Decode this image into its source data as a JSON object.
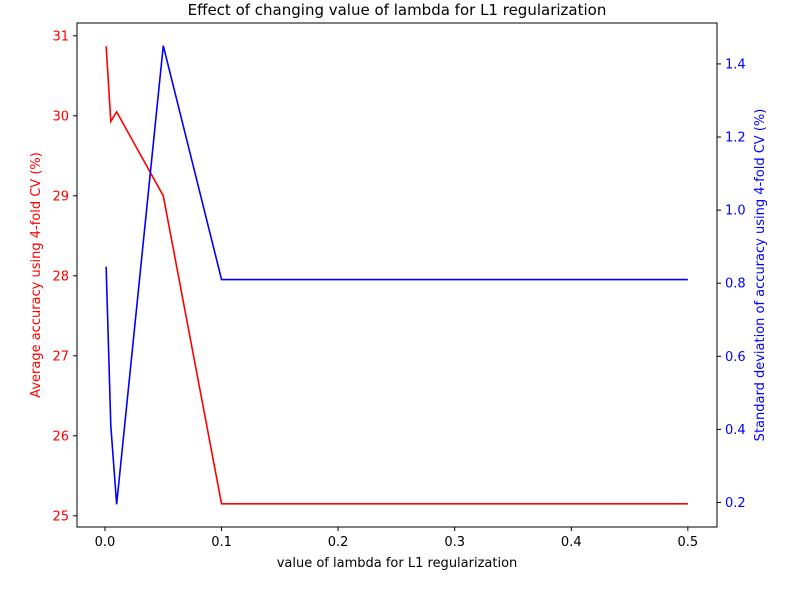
{
  "chart_data": {
    "type": "line",
    "title": "Effect of changing value of lambda for L1 regularization",
    "xlabel": "value of lambda for L1 regularization",
    "ylabel_left": "Average accuracy using 4-fold CV (%)",
    "ylabel_right": "Standard deviation of accuracy using 4-fold CV (%)",
    "x": [
      0.001,
      0.005,
      0.01,
      0.05,
      0.1,
      0.5
    ],
    "series": [
      {
        "axis": "left",
        "color": "#ff0000",
        "values": [
          30.87,
          29.93,
          30.05,
          29.0,
          25.15,
          25.15
        ]
      },
      {
        "axis": "right",
        "color": "#0000ff",
        "values": [
          0.845,
          0.41,
          0.195,
          1.45,
          0.81,
          0.81
        ]
      }
    ],
    "xlim": [
      -0.024,
      0.525
    ],
    "ylim_left": [
      24.86,
      31.16
    ],
    "ylim_right": [
      0.133,
      1.512
    ],
    "xticks": [
      0.0,
      0.1,
      0.2,
      0.3,
      0.4,
      0.5
    ],
    "xtick_labels": [
      "0.0",
      "0.1",
      "0.2",
      "0.3",
      "0.4",
      "0.5"
    ],
    "yticks_left": [
      25,
      26,
      27,
      28,
      29,
      30,
      31
    ],
    "ytick_labels_left": [
      "25",
      "26",
      "27",
      "28",
      "29",
      "30",
      "31"
    ],
    "yticks_right": [
      0.2,
      0.4,
      0.6,
      0.8,
      1.0,
      1.2,
      1.4
    ],
    "ytick_labels_right": [
      "0.2",
      "0.4",
      "0.6",
      "0.8",
      "1.0",
      "1.2",
      "1.4"
    ],
    "left_axis_color": "#ff0000",
    "right_axis_color": "#0000ff",
    "grid": false,
    "legend": "none"
  }
}
